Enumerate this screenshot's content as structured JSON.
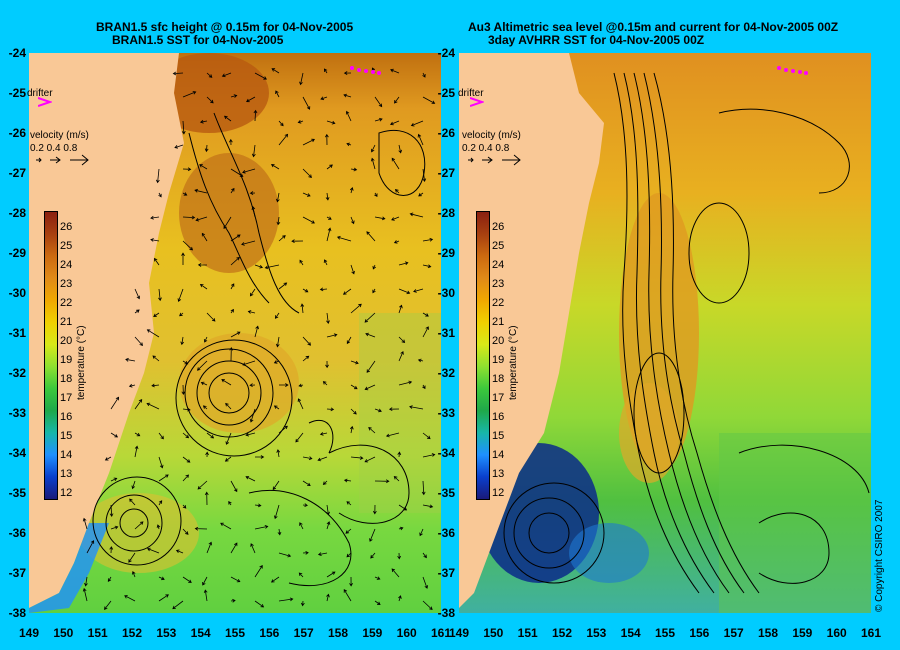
{
  "left_panel": {
    "title_line1": "BRAN1.5 sfc height @ 0.15m for 04-Nov-2005",
    "title_line2": "BRAN1.5 SST for 04-Nov-2005"
  },
  "right_panel": {
    "title_line1": "Au3 Altimetric sea level  @0.15m and current for 04-Nov-2005 00Z",
    "title_line2": "3day AVHRR SST for 04-Nov-2005 00Z"
  },
  "legend": {
    "drifter_label": "drifter",
    "velocity_title": "velocity (m/s)",
    "velocity_values": "0.2 0.4 0.8",
    "colorbar_title": "temperature (°C)",
    "colorbar_ticks": [
      "26",
      "25",
      "24",
      "23",
      "22",
      "21",
      "20",
      "19",
      "18",
      "17",
      "16",
      "15",
      "14",
      "13",
      "12"
    ]
  },
  "axes": {
    "lat_ticks": [
      "-24",
      "-25",
      "-26",
      "-27",
      "-28",
      "-29",
      "-30",
      "-31",
      "-32",
      "-33",
      "-34",
      "-35",
      "-36",
      "-37",
      "-38"
    ],
    "lon_ticks": [
      "149",
      "150",
      "151",
      "152",
      "153",
      "154",
      "155",
      "156",
      "157",
      "158",
      "159",
      "160",
      "161"
    ],
    "lat_range": [
      -38,
      -24
    ],
    "lon_range": [
      149,
      161
    ]
  },
  "colors": {
    "background": "#00ccff",
    "land": "#f9c896",
    "drifter": "#ff00ff",
    "colormap": [
      "#1a1a7a",
      "#0a3fcc",
      "#1e90ff",
      "#18b6a8",
      "#1fa84a",
      "#3cc83c",
      "#8ee030",
      "#d8e818",
      "#f0d000",
      "#f0a800",
      "#e08a18",
      "#cc6a10",
      "#a84010",
      "#8a2010"
    ]
  },
  "copyright": "© Copyright CSIRO 2007"
}
